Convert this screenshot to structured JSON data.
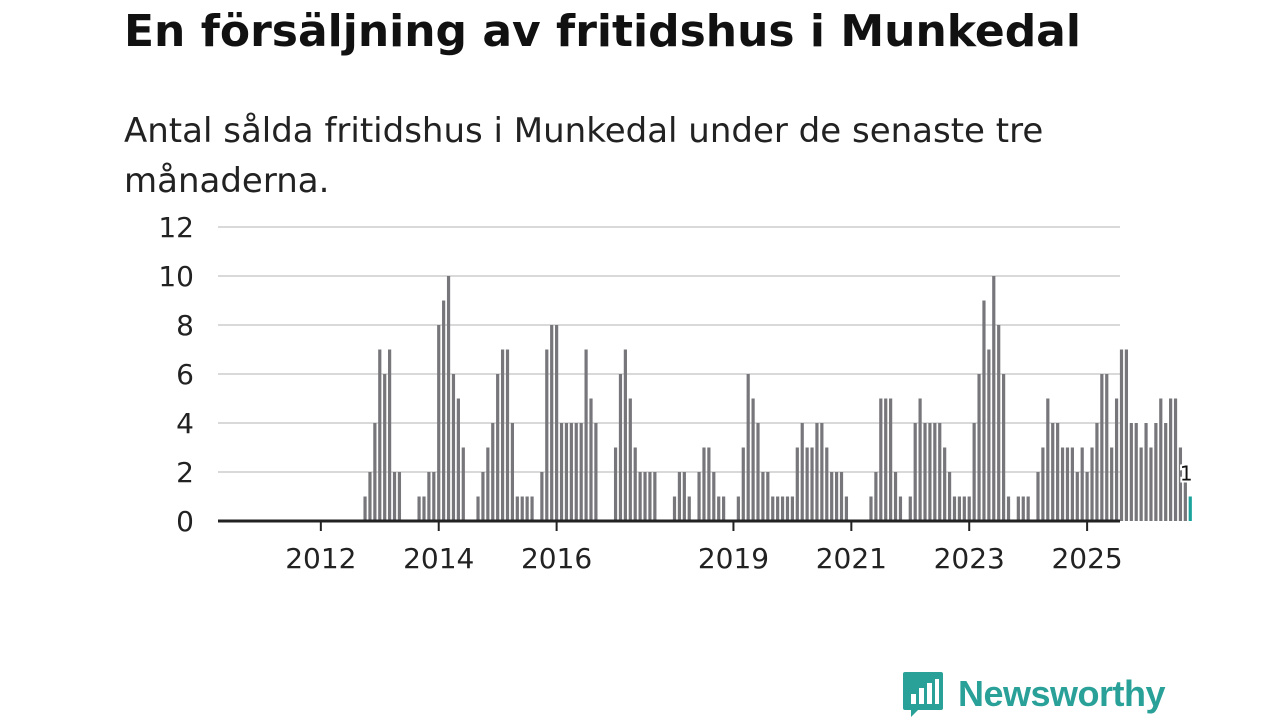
{
  "header": {
    "title": "En försäljning av fritidshus i Munkedal",
    "subtitle": "Antal sålda fritidshus i Munkedal under de senaste tre månaderna."
  },
  "brand": {
    "name": "Newsworthy",
    "icon": "bar-chart-speech-bubble-icon",
    "color": "#2aa198"
  },
  "colors": {
    "bar": "#77767b",
    "highlight": "#1ba39c",
    "grid": "#d9d9d9",
    "axis": "#222222"
  },
  "chart_data": {
    "type": "bar",
    "title": "En försäljning av fritidshus i Munkedal",
    "subtitle": "Antal sålda fritidshus i Munkedal under de senaste tre månaderna.",
    "xlabel": "",
    "ylabel": "",
    "ylim": [
      0,
      12
    ],
    "yticks": [
      "0",
      "2",
      "4",
      "6",
      "8",
      "10",
      "12"
    ],
    "grid": true,
    "start": "2011-01",
    "xtick_labels": [
      {
        "label": "2012",
        "year": 2012
      },
      {
        "label": "2014",
        "year": 2014
      },
      {
        "label": "2016",
        "year": 2016
      },
      {
        "label": "2019",
        "year": 2019
      },
      {
        "label": "2021",
        "year": 2021
      },
      {
        "label": "2023",
        "year": 2023
      },
      {
        "label": "2025",
        "year": 2025
      }
    ],
    "last_value_label": "1",
    "values": [
      0,
      0,
      0,
      0,
      0,
      0,
      0,
      0,
      0,
      0,
      0,
      0,
      0,
      0,
      0,
      0,
      0,
      0,
      0,
      0,
      0,
      0,
      0,
      0,
      0,
      0,
      0,
      0,
      0,
      1,
      2,
      4,
      7,
      6,
      7,
      2,
      2,
      0,
      0,
      0,
      1,
      1,
      2,
      2,
      8,
      9,
      10,
      6,
      5,
      3,
      0,
      0,
      1,
      2,
      3,
      4,
      6,
      7,
      7,
      4,
      1,
      1,
      1,
      1,
      0,
      2,
      7,
      8,
      8,
      4,
      4,
      4,
      4,
      4,
      7,
      5,
      4,
      0,
      0,
      0,
      3,
      6,
      7,
      5,
      3,
      2,
      2,
      2,
      2,
      0,
      0,
      0,
      1,
      2,
      2,
      1,
      0,
      2,
      3,
      3,
      2,
      1,
      1,
      0,
      0,
      1,
      3,
      6,
      5,
      4,
      2,
      2,
      1,
      1,
      1,
      1,
      1,
      3,
      4,
      3,
      3,
      4,
      4,
      3,
      2,
      2,
      2,
      1,
      0,
      0,
      0,
      0,
      1,
      2,
      5,
      5,
      5,
      2,
      1,
      0,
      1,
      4,
      5,
      4,
      4,
      4,
      4,
      3,
      2,
      1,
      1,
      1,
      1,
      4,
      6,
      9,
      7,
      10,
      8,
      6,
      1,
      0,
      1,
      1,
      1,
      0,
      2,
      3,
      5,
      4,
      4,
      3,
      3,
      3,
      2,
      3,
      2,
      3,
      4,
      6,
      6,
      3,
      5,
      7,
      7,
      4,
      4,
      3,
      4,
      3,
      4,
      5,
      4,
      5,
      5,
      3,
      2,
      1
    ]
  }
}
